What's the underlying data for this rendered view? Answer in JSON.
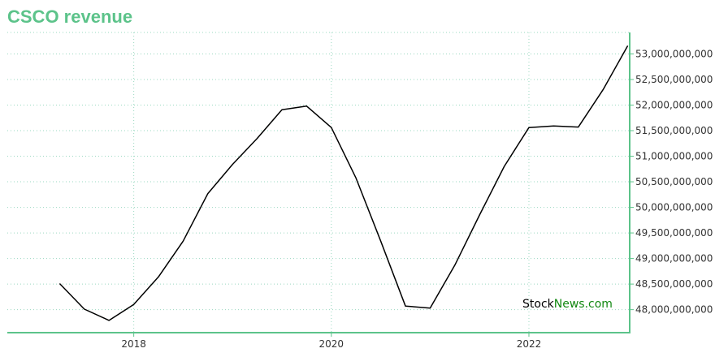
{
  "title": "CSCO revenue",
  "watermark": {
    "part1": "Stock",
    "part2": "News",
    "part3": ".com"
  },
  "colors": {
    "accent": "#5cc38a",
    "line": "#000000",
    "grid": "#9ad8c0",
    "watermark_green": "#118811"
  },
  "chart_data": {
    "type": "line",
    "title": "CSCO revenue",
    "xlabel": "",
    "ylabel": "",
    "x_ticks": [
      2018,
      2020,
      2022
    ],
    "y_ticks": [
      48000000000,
      48500000000,
      49000000000,
      49500000000,
      50000000000,
      50500000000,
      51000000000,
      51500000000,
      52000000000,
      52500000000,
      53000000000
    ],
    "y_tick_labels": [
      "48,000,000,000",
      "48,500,000,000",
      "49,000,000,000",
      "49,500,000,000",
      "50,000,000,000",
      "50,500,000,000",
      "51,000,000,000",
      "51,500,000,000",
      "52,000,000,000",
      "52,500,000,000",
      "53,000,000,000"
    ],
    "xlim": [
      2016.72,
      2023.02
    ],
    "ylim": [
      47550000000,
      53420000000
    ],
    "grid": true,
    "y_axis_position": "right",
    "series": [
      {
        "x": [
          2017.25,
          2017.5,
          2017.75,
          2018.0,
          2018.25,
          2018.5,
          2018.75,
          2019.0,
          2019.25,
          2019.5,
          2019.75,
          2020.0,
          2020.25,
          2020.5,
          2020.75,
          2021.0,
          2021.25,
          2021.5,
          2021.75,
          2022.0,
          2022.25,
          2022.5,
          2022.75,
          2023.0
        ],
        "y": [
          48510000000,
          48010000000,
          47790000000,
          48100000000,
          48640000000,
          49340000000,
          50270000000,
          50840000000,
          51350000000,
          51910000000,
          51980000000,
          51560000000,
          50570000000,
          49340000000,
          48070000000,
          48030000000,
          48870000000,
          49850000000,
          50800000000,
          51560000000,
          51590000000,
          51570000000,
          52300000000,
          53160000000
        ]
      }
    ]
  }
}
